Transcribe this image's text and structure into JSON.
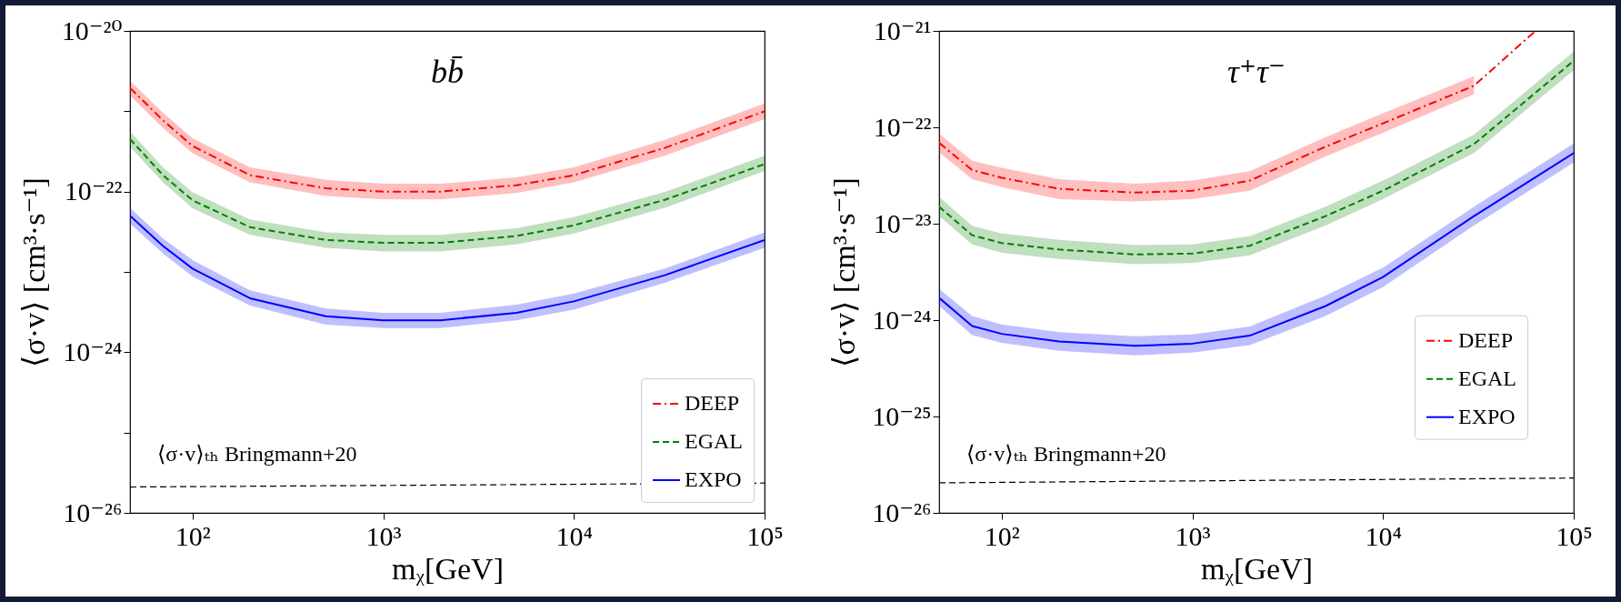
{
  "chart_data": [
    {
      "type": "line",
      "title": "bb̄",
      "xlabel": "mᵪ[GeV]",
      "ylabel": "⟨σ·v⟩ [cm³·s⁻¹]",
      "log": "xy",
      "legend": "bottom right",
      "xlim": [
        47,
        100000
      ],
      "xticks": [
        {
          "value": 100,
          "label": "10²"
        },
        {
          "value": 1000,
          "label": "10³"
        },
        {
          "value": 10000,
          "label": "10⁴"
        },
        {
          "value": 100000,
          "label": "10⁵"
        }
      ],
      "ylim": [
        1e-26,
        1e-20
      ],
      "yticks": [
        {
          "value": 1e-26,
          "label": "10⁻²⁶"
        },
        {
          "value": 1e-25,
          "label": null
        },
        {
          "value": 1e-24,
          "label": "10⁻²⁴"
        },
        {
          "value": 1e-23,
          "label": null
        },
        {
          "value": 1e-22,
          "label": "10⁻²²"
        },
        {
          "value": 1e-21,
          "label": null
        },
        {
          "value": 1e-20,
          "label": "10⁻²⁰"
        }
      ],
      "series": [
        {
          "name": "DEEP",
          "color": "#ff0000",
          "line_style": "dashdot",
          "x": [
            47,
            70,
            100,
            200,
            500,
            1000,
            2000,
            5000,
            10000,
            30000,
            100000
          ],
          "values": [
            1.95e-21,
            7.7e-22,
            3.7e-22,
            1.6e-22,
            1.1e-22,
            1e-22,
            1e-22,
            1.2e-22,
            1.6e-22,
            3.5e-22,
            1e-21
          ],
          "lower": [
            1.56e-21,
            6.2e-22,
            3e-22,
            1.3e-22,
            8.8e-23,
            8e-23,
            8e-23,
            9.6e-23,
            1.3e-22,
            2.8e-22,
            8e-22
          ],
          "upper": [
            2.4e-21,
            9.6e-22,
            4.6e-22,
            2e-22,
            1.4e-22,
            1.25e-22,
            1.25e-22,
            1.5e-22,
            2e-22,
            4.4e-22,
            1.25e-21
          ]
        },
        {
          "name": "EGAL",
          "color": "#008000",
          "line_style": "dashed",
          "x": [
            47,
            70,
            100,
            200,
            500,
            1000,
            2000,
            5000,
            10000,
            30000,
            100000
          ],
          "values": [
            4.5e-22,
            1.6e-22,
            7.8e-23,
            3.6e-23,
            2.5e-23,
            2.3e-23,
            2.3e-23,
            2.8e-23,
            3.8e-23,
            7.9e-23,
            2.2e-22
          ],
          "lower": [
            3.6e-22,
            1.3e-22,
            6.2e-23,
            2.9e-23,
            2e-23,
            1.8e-23,
            1.8e-23,
            2.2e-23,
            3e-23,
            6.3e-23,
            1.8e-22
          ],
          "upper": [
            5.6e-22,
            2e-22,
            9.8e-23,
            4.5e-23,
            3.1e-23,
            2.9e-23,
            2.9e-23,
            3.5e-23,
            4.8e-23,
            9.9e-23,
            2.8e-22
          ]
        },
        {
          "name": "EXPO",
          "color": "#0000ff",
          "line_style": "solid",
          "x": [
            47,
            70,
            100,
            200,
            500,
            1000,
            2000,
            5000,
            10000,
            30000,
            100000
          ],
          "values": [
            5e-23,
            2.1e-23,
            1.1e-23,
            4.7e-24,
            2.8e-24,
            2.5e-24,
            2.5e-24,
            3.1e-24,
            4.3e-24,
            9.1e-24,
            2.5e-23
          ],
          "lower": [
            4e-23,
            1.7e-23,
            8.8e-24,
            3.8e-24,
            2.2e-24,
            2e-24,
            2e-24,
            2.5e-24,
            3.4e-24,
            7.3e-24,
            2e-23
          ],
          "upper": [
            6.3e-23,
            2.6e-23,
            1.4e-23,
            5.9e-24,
            3.5e-24,
            3.1e-24,
            3.1e-24,
            3.9e-24,
            5.4e-24,
            1.1e-23,
            3.1e-23
          ]
        },
        {
          "color": "#000000",
          "line_style": "dashed",
          "x": [
            47,
            100000
          ],
          "values": [
            2.1e-26,
            2.35e-26
          ]
        }
      ],
      "annotations": [
        "⟨σ·v⟩ₜₕ Bringmann+20"
      ]
    },
    {
      "type": "line",
      "title": "τ⁺τ⁻",
      "xlabel": "mᵪ[GeV]",
      "ylabel": "⟨σ·v⟩ [cm³·s⁻¹]",
      "log": "xy",
      "legend": "right",
      "xlim": [
        47,
        100000
      ],
      "xticks": [
        {
          "value": 100,
          "label": "10²"
        },
        {
          "value": 1000,
          "label": "10³"
        },
        {
          "value": 10000,
          "label": "10⁴"
        },
        {
          "value": 100000,
          "label": "10⁵"
        }
      ],
      "ylim": [
        1e-26,
        1e-21
      ],
      "yticks": [
        {
          "value": 1e-26,
          "label": "10⁻²⁶"
        },
        {
          "value": 1e-25,
          "label": "10⁻²⁵"
        },
        {
          "value": 1e-24,
          "label": "10⁻²⁴"
        },
        {
          "value": 1e-23,
          "label": "10⁻²³"
        },
        {
          "value": 1e-22,
          "label": "10⁻²²"
        },
        {
          "value": 1e-21,
          "label": "10⁻²¹"
        }
      ],
      "series": [
        {
          "name": "DEEP",
          "color": "#ff0000",
          "line_style": "dashdot",
          "x": [
            47,
            70,
            100,
            200,
            500,
            1000,
            2000,
            5000,
            10000,
            30000,
            63000
          ],
          "values": [
            6.9e-23,
            3.6e-23,
            3e-23,
            2.3e-23,
            2.1e-23,
            2.2e-23,
            2.8e-23,
            6.3e-23,
            1.1e-22,
            2.7e-22,
            1e-21
          ],
          "lower": [
            5.5e-23,
            2.9e-23,
            2.4e-23,
            1.8e-23,
            1.7e-23,
            1.8e-23,
            2.2e-23,
            5e-23,
            8.8e-23,
            2.2e-22,
            null
          ],
          "upper": [
            8.6e-23,
            4.5e-23,
            3.8e-23,
            2.9e-23,
            2.6e-23,
            2.8e-23,
            3.5e-23,
            7.9e-23,
            1.4e-22,
            3.4e-22,
            null
          ]
        },
        {
          "name": "EGAL",
          "color": "#008000",
          "line_style": "dashed",
          "x": [
            47,
            70,
            100,
            200,
            500,
            1000,
            2000,
            5000,
            10000,
            30000,
            100000
          ],
          "values": [
            1.5e-23,
            7.6e-24,
            6.3e-24,
            5.4e-24,
            4.8e-24,
            4.9e-24,
            5.9e-24,
            1.2e-23,
            2.2e-23,
            6.7e-23,
            4.9e-22
          ],
          "lower": [
            1.2e-23,
            6.1e-24,
            5e-24,
            4.3e-24,
            3.8e-24,
            3.9e-24,
            4.7e-24,
            9.6e-24,
            1.8e-23,
            5.4e-23,
            3.9e-22
          ],
          "upper": [
            1.9e-23,
            9.5e-24,
            7.9e-24,
            6.8e-24,
            6e-24,
            6.1e-24,
            7.4e-24,
            1.5e-23,
            2.8e-23,
            8.4e-23,
            6.1e-22
          ]
        },
        {
          "name": "EXPO",
          "color": "#0000ff",
          "line_style": "solid",
          "x": [
            47,
            70,
            100,
            200,
            500,
            1000,
            2000,
            5000,
            10000,
            30000,
            100000
          ],
          "values": [
            1.7e-24,
            8.7e-25,
            7.2e-25,
            6e-25,
            5.4e-25,
            5.7e-25,
            6.9e-25,
            1.4e-24,
            2.8e-24,
            1.2e-23,
            5.4e-23
          ],
          "lower": [
            1.4e-24,
            7e-25,
            5.8e-25,
            4.8e-25,
            4.3e-25,
            4.6e-25,
            5.5e-25,
            1.1e-24,
            2.2e-24,
            9.6e-24,
            4.3e-23
          ],
          "upper": [
            2.1e-24,
            1.1e-24,
            9e-25,
            7.5e-25,
            6.8e-25,
            7.1e-25,
            8.6e-25,
            1.8e-24,
            3.5e-24,
            1.5e-23,
            6.8e-23
          ]
        },
        {
          "color": "#000000",
          "line_style": "dashed",
          "x": [
            47,
            100000
          ],
          "values": [
            2.05e-26,
            2.3e-26
          ]
        }
      ],
      "annotations": [
        "⟨σ·v⟩ₜₕ Bringmann+20"
      ]
    }
  ]
}
